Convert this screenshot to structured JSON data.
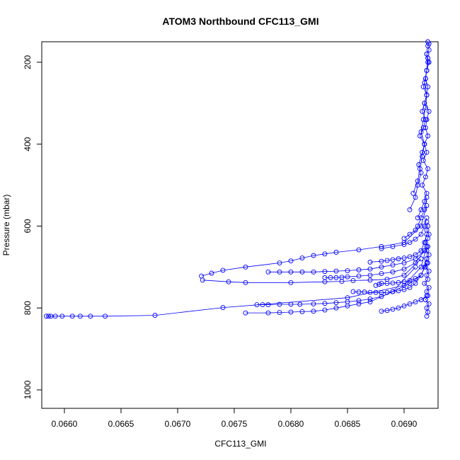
{
  "chart_data": {
    "type": "line",
    "title": "ATOM3 Northbound CFC113_GMI",
    "xlabel": "CFC113_GMI",
    "ylabel": "Pressure (mbar)",
    "xlim": [
      0.0658,
      0.0693
    ],
    "ylim": [
      1045,
      150
    ],
    "y_reversed": true,
    "grid": false,
    "marker": "open-circle",
    "line_color": "#0000ff",
    "xticks": [
      {
        "value": 0.066,
        "label": "0.0660"
      },
      {
        "value": 0.0665,
        "label": "0.0665"
      },
      {
        "value": 0.067,
        "label": "0.0670"
      },
      {
        "value": 0.0675,
        "label": "0.0675"
      },
      {
        "value": 0.068,
        "label": "0.0680"
      },
      {
        "value": 0.0685,
        "label": "0.0685"
      },
      {
        "value": 0.069,
        "label": "0.0690"
      }
    ],
    "yticks": [
      {
        "value": 200,
        "label": "200"
      },
      {
        "value": 400,
        "label": "400"
      },
      {
        "value": 600,
        "label": "600"
      },
      {
        "value": 800,
        "label": "800"
      },
      {
        "value": 1000,
        "label": "1000"
      }
    ],
    "series": [
      {
        "x": [
          0.06584,
          0.06586,
          0.06588,
          0.06592,
          0.06598,
          0.06607,
          0.06614,
          0.06623,
          0.06636,
          0.0668,
          0.0674,
          0.0685,
          0.069,
          0.06915,
          0.0692
        ],
        "y": [
          820,
          820,
          820,
          820,
          820,
          820,
          820,
          820,
          820,
          818,
          799,
          775,
          745,
          700,
          650
        ]
      },
      {
        "x": [
          0.06721,
          0.0673,
          0.0674,
          0.0676,
          0.0679,
          0.068,
          0.0681,
          0.0682,
          0.0683,
          0.0684,
          0.0686,
          0.0688,
          0.069,
          0.06915,
          0.0692
        ],
        "y": [
          722,
          715,
          708,
          700,
          690,
          685,
          678,
          672,
          668,
          664,
          658,
          650,
          640,
          600,
          550
        ]
      },
      {
        "x": [
          0.06722,
          0.06745,
          0.0676,
          0.068,
          0.0683,
          0.06845,
          0.06855,
          0.0687,
          0.06885,
          0.069,
          0.06915
        ],
        "y": [
          732,
          736,
          738,
          738,
          736,
          735,
          733,
          732,
          730,
          720,
          680
        ]
      },
      {
        "x": [
          0.0676,
          0.0678,
          0.0679,
          0.068,
          0.0681,
          0.0682,
          0.0683,
          0.0684,
          0.0685,
          0.0686,
          0.0687,
          0.0689,
          0.0691
        ],
        "y": [
          812,
          812,
          811,
          810,
          809,
          808,
          805,
          800,
          795,
          790,
          785,
          760,
          700
        ]
      },
      {
        "x": [
          0.0677,
          0.06775,
          0.0678,
          0.0679,
          0.068,
          0.06808,
          0.0682,
          0.0683,
          0.0684,
          0.0685,
          0.0686,
          0.0687,
          0.0688,
          0.0689,
          0.06905,
          0.06915
        ],
        "y": [
          792,
          792,
          792,
          791,
          791,
          791,
          790,
          789,
          787,
          785,
          782,
          778,
          772,
          760,
          740,
          720
        ]
      },
      {
        "x": [
          0.0678,
          0.0679,
          0.068,
          0.0681,
          0.0682,
          0.0683,
          0.0684,
          0.0685,
          0.0686,
          0.0687,
          0.0688,
          0.0689,
          0.069,
          0.0691,
          0.06918
        ],
        "y": [
          712,
          712,
          712,
          712,
          712,
          711,
          710,
          709,
          707,
          705,
          700,
          695,
          690,
          680,
          660
        ]
      },
      {
        "x": [
          0.0683,
          0.06835,
          0.0684,
          0.06845,
          0.0685,
          0.0686,
          0.0687,
          0.0688,
          0.0689,
          0.069,
          0.0691,
          0.06918
        ],
        "y": [
          726,
          726,
          726,
          725,
          724,
          722,
          720,
          716,
          712,
          705,
          690,
          660
        ]
      },
      {
        "x": [
          0.06855,
          0.0686,
          0.06865,
          0.0687,
          0.06875,
          0.0688,
          0.06885,
          0.0689,
          0.06895,
          0.069,
          0.06905,
          0.0691,
          0.06915,
          0.0692
        ],
        "y": [
          760,
          761,
          761,
          762,
          762,
          763,
          762,
          760,
          758,
          755,
          750,
          740,
          720,
          690
        ]
      },
      {
        "x": [
          0.06875,
          0.06878,
          0.0688,
          0.06885,
          0.0689,
          0.06895,
          0.069,
          0.06905,
          0.0691,
          0.06915,
          0.06918,
          0.0692
        ],
        "y": [
          745,
          742,
          740,
          740,
          739,
          738,
          736,
          733,
          728,
          720,
          700,
          680
        ]
      },
      {
        "x": [
          0.0688,
          0.06885,
          0.0689,
          0.06895,
          0.069,
          0.06905,
          0.0691,
          0.06915,
          0.0692
        ],
        "y": [
          808,
          806,
          803,
          800,
          795,
          790,
          785,
          780,
          770
        ]
      },
      {
        "x": [
          0.0687,
          0.0688,
          0.06885,
          0.0689,
          0.06895,
          0.069,
          0.06905,
          0.0691,
          0.06915,
          0.06918,
          0.0692
        ],
        "y": [
          688,
          686,
          684,
          682,
          680,
          678,
          675,
          670,
          660,
          640,
          620
        ]
      },
      {
        "x": [
          0.0688,
          0.0689,
          0.069,
          0.06905,
          0.0691,
          0.06915,
          0.06918,
          0.0692
        ],
        "y": [
          655,
          650,
          645,
          640,
          632,
          620,
          600,
          580
        ]
      },
      {
        "x": [
          0.069,
          0.06905,
          0.0691,
          0.06912,
          0.06915,
          0.06918,
          0.0692
        ],
        "y": [
          630,
          620,
          610,
          600,
          580,
          560,
          530
        ]
      },
      {
        "x": [
          0.0692,
          0.06921,
          0.0692,
          0.06922,
          0.06919,
          0.06921,
          0.0692,
          0.06922,
          0.06918,
          0.06921,
          0.0692,
          0.06922,
          0.06919,
          0.06921,
          0.0692,
          0.06922,
          0.0692,
          0.06921,
          0.06919,
          0.06921,
          0.06922,
          0.0692,
          0.06921,
          0.0692
        ],
        "y": [
          820,
          810,
          800,
          790,
          780,
          770,
          760,
          750,
          740,
          730,
          720,
          710,
          700,
          690,
          680,
          670,
          660,
          650,
          640,
          630,
          620,
          610,
          600,
          590
        ]
      },
      {
        "x": [
          0.06912,
          0.06915,
          0.06918,
          0.0692,
          0.06916,
          0.06919,
          0.06921,
          0.06917,
          0.0692,
          0.06918,
          0.06921,
          0.06919,
          0.0692,
          0.06922,
          0.06918,
          0.0692,
          0.06921,
          0.06919,
          0.0692,
          0.06922,
          0.06921,
          0.0692,
          0.06922,
          0.06921,
          0.06922,
          0.06921
        ],
        "y": [
          580,
          560,
          540,
          520,
          500,
          480,
          460,
          440,
          420,
          400,
          380,
          360,
          340,
          320,
          300,
          280,
          260,
          240,
          220,
          200,
          190,
          180,
          170,
          160,
          155,
          150
        ]
      },
      {
        "x": [
          0.06905,
          0.0691,
          0.06912,
          0.06915,
          0.06913,
          0.06916,
          0.06918,
          0.06914,
          0.06917,
          0.06919,
          0.06916,
          0.06918,
          0.0692,
          0.06917,
          0.06919,
          0.0692,
          0.06921,
          0.0692
        ],
        "y": [
          560,
          530,
          500,
          470,
          450,
          420,
          400,
          380,
          360,
          340,
          320,
          300,
          280,
          260,
          240,
          220,
          200,
          180
        ]
      },
      {
        "x": [
          0.06908,
          0.06912,
          0.06914,
          0.06916,
          0.06918,
          0.06915,
          0.06917,
          0.06919,
          0.0692,
          0.06918,
          0.0692,
          0.06921
        ],
        "y": [
          520,
          490,
          460,
          430,
          400,
          370,
          340,
          310,
          280,
          250,
          220,
          190
        ]
      }
    ]
  }
}
